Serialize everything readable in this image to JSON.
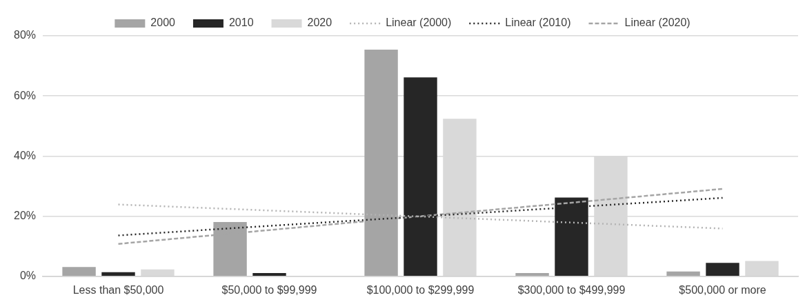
{
  "chart_data": {
    "type": "bar",
    "categories": [
      "Less than $50,000",
      "$50,000 to $99,999",
      "$100,000 to $299,999",
      "$300,000 to $499,999",
      "$500,000 or more"
    ],
    "series": [
      {
        "name": "2000",
        "color": "#a5a5a5",
        "values": [
          3.1,
          18.1,
          75.4,
          1.1,
          1.6
        ]
      },
      {
        "name": "2010",
        "color": "#262626",
        "values": [
          1.4,
          1.1,
          66.2,
          26.2,
          4.5
        ]
      },
      {
        "name": "2020",
        "color": "#d9d9d9",
        "values": [
          2.3,
          0,
          52.4,
          40.1,
          5.1
        ]
      },
      {
        "name": "Linear (2000)",
        "type": "line",
        "color": "#b4b4b4",
        "line_style": "dotted",
        "values": [
          23.9,
          21.9,
          19.9,
          17.9,
          15.9
        ]
      },
      {
        "name": "Linear (2010)",
        "type": "line",
        "color": "#262626",
        "line_style": "dotted",
        "values": [
          13.6,
          16.8,
          19.9,
          23.0,
          26.1
        ]
      },
      {
        "name": "Linear (2020)",
        "type": "line",
        "color": "#a5a5a5",
        "line_style": "dashed",
        "values": [
          10.8,
          15.4,
          20.0,
          24.5,
          29.1
        ]
      }
    ],
    "ylim": [
      0,
      80
    ],
    "yticks": [
      {
        "value": 0,
        "label": "0%"
      },
      {
        "value": 20,
        "label": "20%"
      },
      {
        "value": 40,
        "label": "40%"
      },
      {
        "value": 60,
        "label": "60%"
      },
      {
        "value": 80,
        "label": "80%"
      }
    ],
    "grid": "y",
    "legend": "top",
    "marker": "none"
  }
}
